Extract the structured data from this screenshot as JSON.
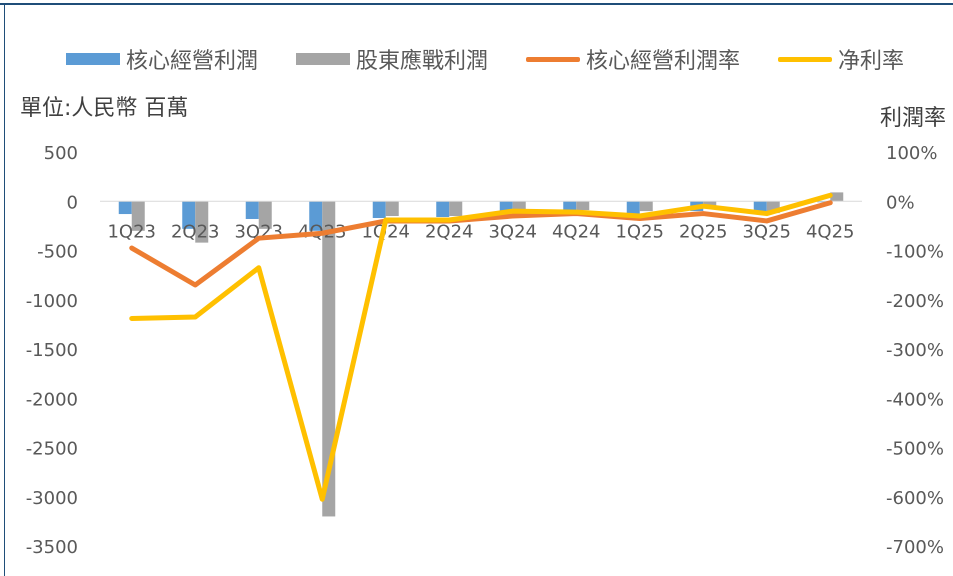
{
  "chart_data": {
    "type": "bar",
    "combo": "bar+line",
    "unit_label": "單位:人民幣 百萬",
    "y2_label": "利潤率",
    "categories": [
      "1Q23",
      "2Q23",
      "3Q23",
      "4Q23",
      "1Q24",
      "2Q24",
      "3Q24",
      "4Q24",
      "1Q25",
      "2Q25",
      "3Q25",
      "4Q25"
    ],
    "yticks": [
      "500",
      "0",
      "-500",
      "-1000",
      "-1500",
      "-2000",
      "-2500",
      "-3000",
      "-3500"
    ],
    "y2ticks": [
      "100%",
      "0%",
      "-100%",
      "-200%",
      "-300%",
      "-400%",
      "-500%",
      "-600%",
      "-700%"
    ],
    "ylim": [
      -3500,
      500
    ],
    "y2lim": [
      -700,
      100
    ],
    "legend_position": "top",
    "grid": false,
    "series": [
      {
        "name": "核心經營利潤",
        "kind": "bar",
        "axis": "left",
        "color": "#5b9bd5",
        "values": [
          -130,
          -280,
          -180,
          -300,
          -170,
          -160,
          -110,
          -100,
          -130,
          -100,
          -110,
          -5
        ]
      },
      {
        "name": "股東應戰利潤",
        "kind": "bar",
        "axis": "left",
        "color": "#a5a5a5",
        "values": [
          -300,
          -420,
          -280,
          -3200,
          -150,
          -150,
          -110,
          -90,
          -100,
          -50,
          -120,
          90
        ]
      },
      {
        "name": "核心經營利潤率",
        "kind": "line",
        "axis": "right",
        "color": "#ed7d31",
        "values": [
          -95,
          -170,
          -75,
          -65,
          -40,
          -40,
          -30,
          -25,
          -35,
          -25,
          -40,
          -3
        ]
      },
      {
        "name": "净利率",
        "kind": "line",
        "axis": "right",
        "color": "#ffc000",
        "values": [
          -238,
          -235,
          -135,
          -605,
          -38,
          -38,
          -20,
          -22,
          -30,
          -10,
          -25,
          12
        ]
      }
    ]
  }
}
